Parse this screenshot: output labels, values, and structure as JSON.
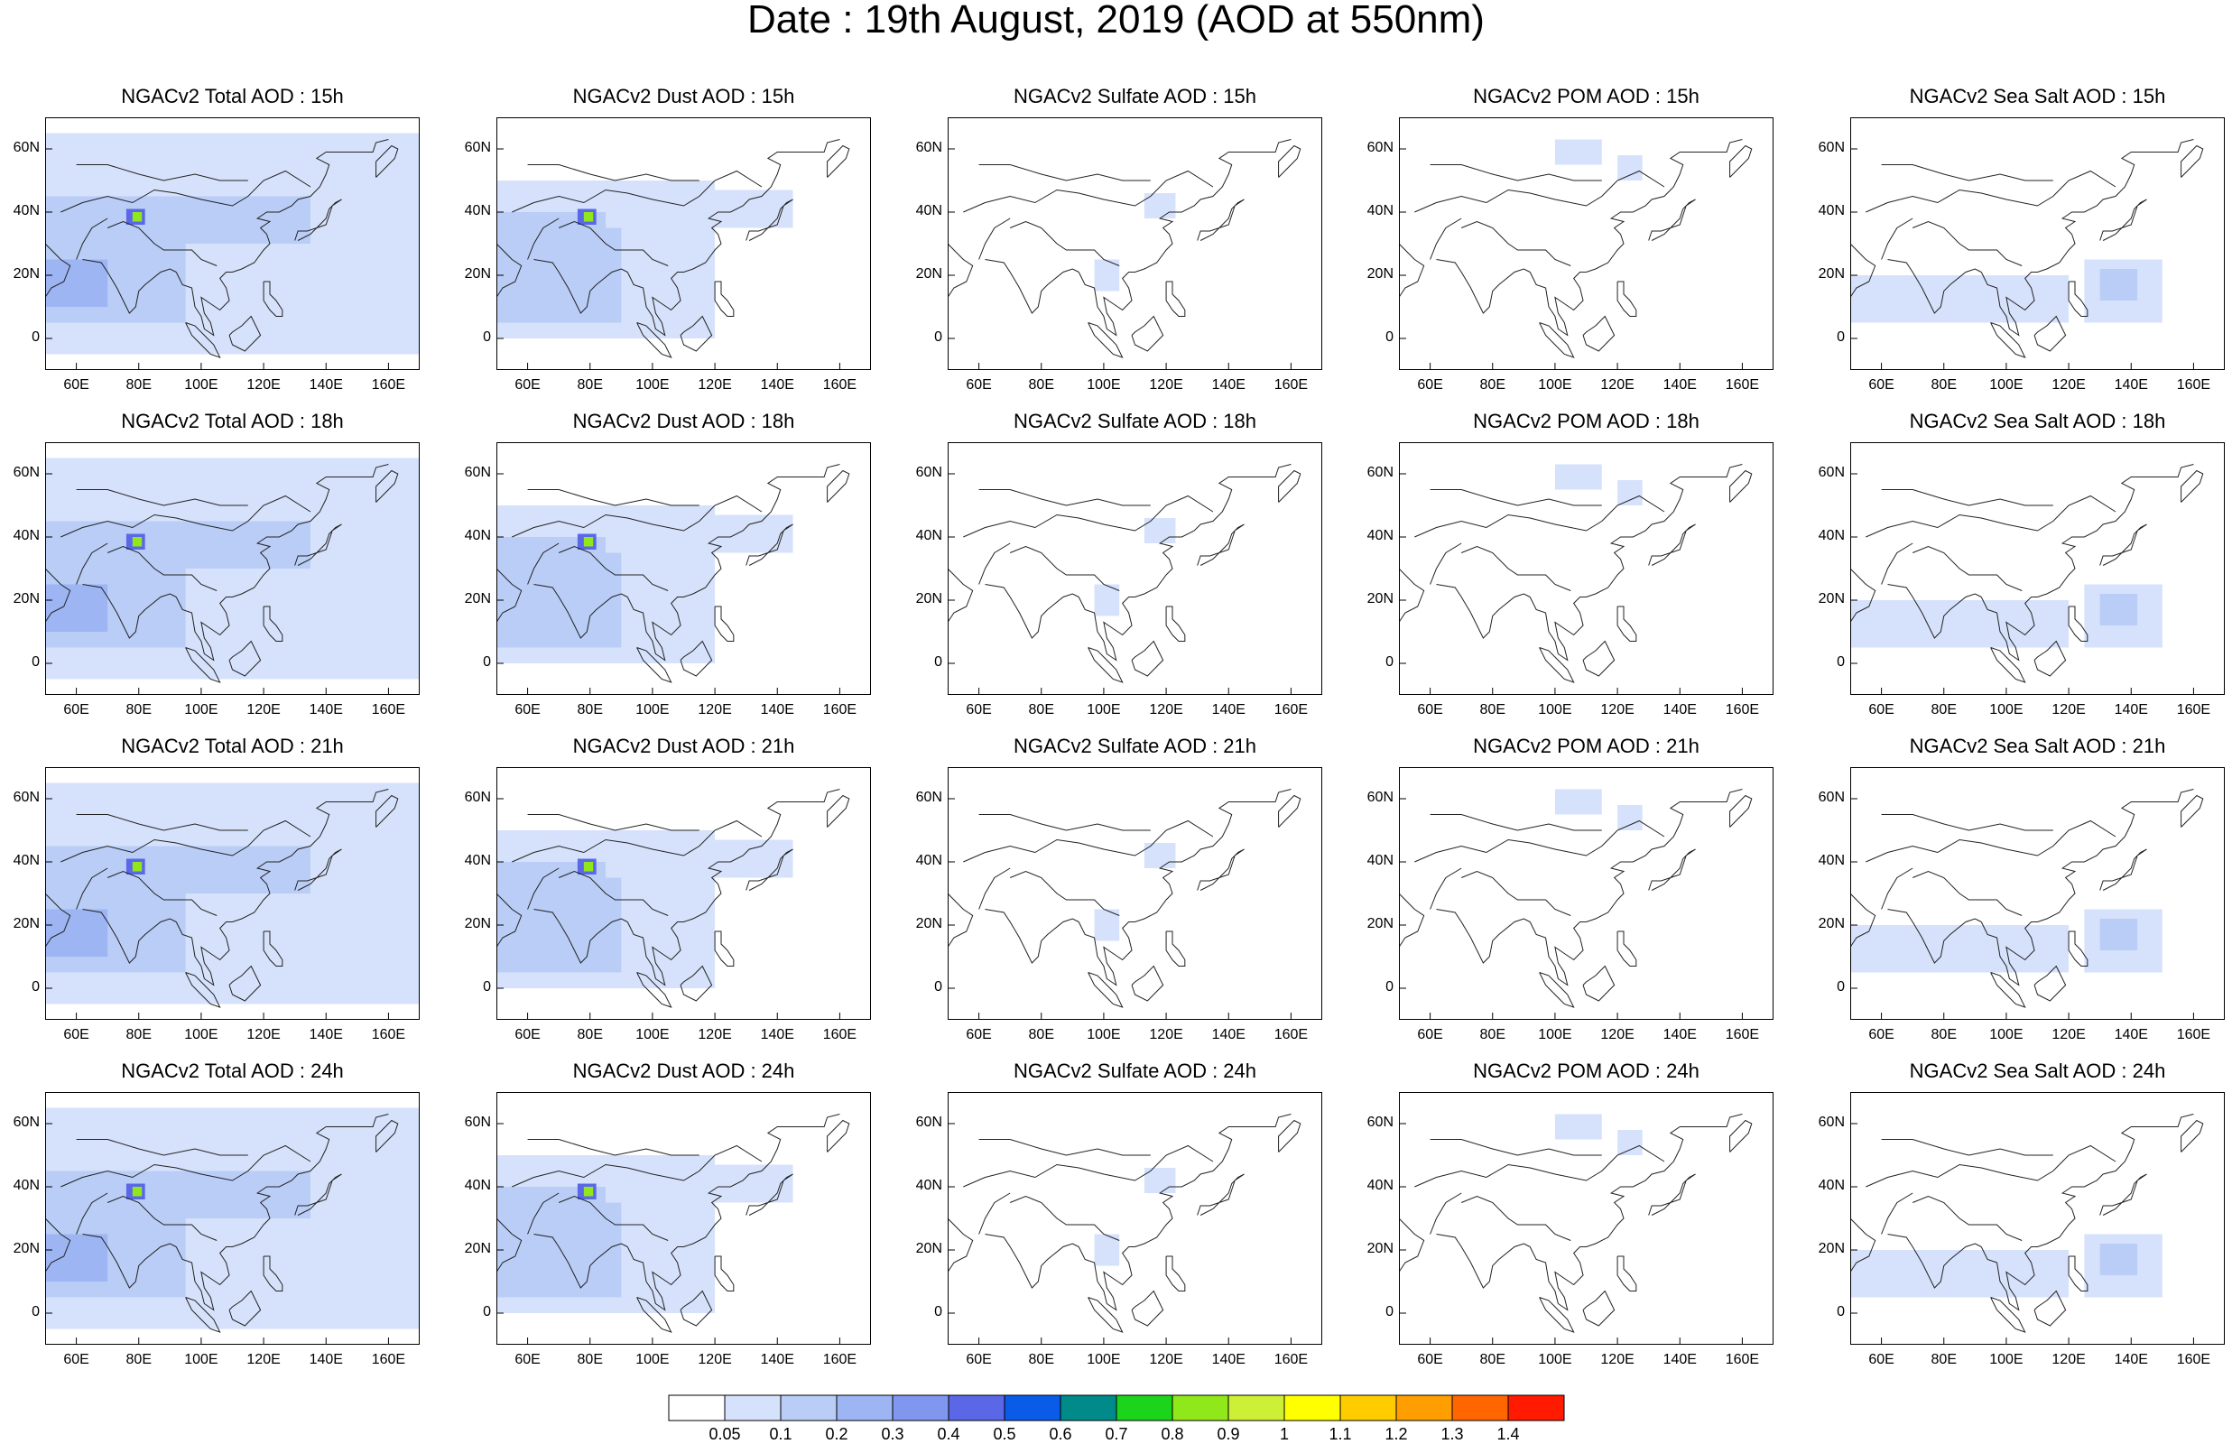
{
  "title": "Date : 19th August, 2019 (AOD at 550nm)",
  "rows": [
    {
      "panels": [
        "NGACv2 Total AOD : 15h",
        "NGACv2 Dust AOD : 15h",
        "NGACv2 Sulfate AOD : 15h",
        "NGACv2 POM AOD : 15h",
        "NGACv2 Sea Salt AOD : 15h"
      ]
    },
    {
      "panels": [
        "NGACv2 Total AOD : 18h",
        "NGACv2 Dust AOD : 18h",
        "NGACv2 Sulfate AOD : 18h",
        "NGACv2 POM AOD : 18h",
        "NGACv2 Sea Salt AOD : 18h"
      ]
    },
    {
      "panels": [
        "NGACv2 Total AOD : 21h",
        "NGACv2 Dust AOD : 21h",
        "NGACv2 Sulfate AOD : 21h",
        "NGACv2 POM AOD : 21h",
        "NGACv2 Sea Salt AOD : 21h"
      ]
    },
    {
      "panels": [
        "NGACv2 Total AOD : 24h",
        "NGACv2 Dust AOD : 24h",
        "NGACv2 Sulfate AOD : 24h",
        "NGACv2 POM AOD : 24h",
        "NGACv2 Sea Salt  AOD : 24h"
      ]
    }
  ],
  "y_ticks": [
    "60N",
    "40N",
    "20N",
    "0"
  ],
  "x_ticks": [
    "60E",
    "80E",
    "100E",
    "120E",
    "140E",
    "160E"
  ],
  "colorbar": {
    "labels": [
      "0.05",
      "0.1",
      "0.2",
      "0.3",
      "0.4",
      "0.5",
      "0.6",
      "0.7",
      "0.8",
      "0.9",
      "1",
      "1.1",
      "1.2",
      "1.3",
      "1.4"
    ],
    "colors": [
      "#ffffff",
      "#d6e2fb",
      "#b9cdf7",
      "#9db5f3",
      "#8197ef",
      "#5a68e8",
      "#0a5ce8",
      "#008a8a",
      "#1bd41b",
      "#90e81a",
      "#cdef35",
      "#ffff00",
      "#ffcc00",
      "#ff9e00",
      "#ff6600",
      "#ff1a00"
    ]
  }
}
